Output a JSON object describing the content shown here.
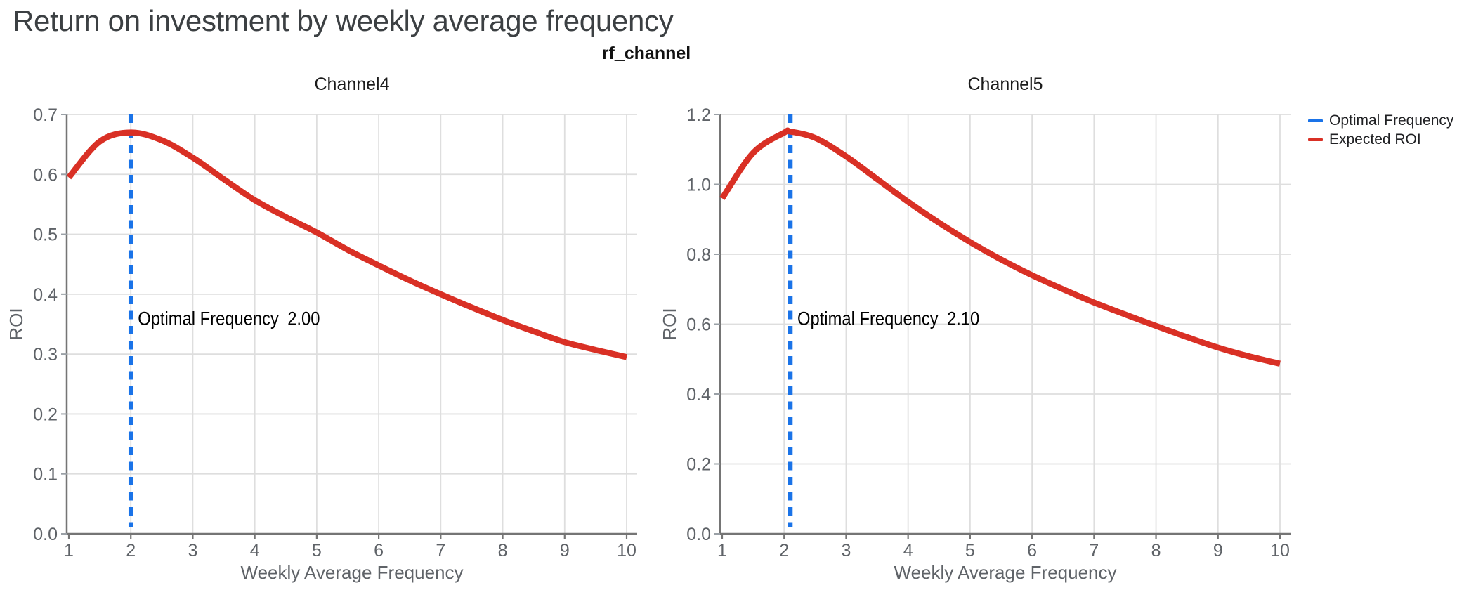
{
  "page_title": "Return on investment by weekly average frequency",
  "facet_title": "rf_channel",
  "legend": {
    "items": [
      {
        "label": "Optimal Frequency",
        "color": "#1a73e8",
        "dashed": true
      },
      {
        "label": "Expected ROI",
        "color": "#d93025",
        "dashed": false
      }
    ]
  },
  "colors": {
    "optimal_line": "#1a73e8",
    "roi_curve": "#d93025",
    "grid": "#dedede",
    "axis_domain": "#757575",
    "tick_label": "#5f6368",
    "axis_title": "#5f6368",
    "channel_title": "#1b1b1b",
    "annotation_text": "#000000"
  },
  "chart_data": [
    {
      "type": "line",
      "title": "Channel4",
      "xlabel": "Weekly Average Frequency",
      "ylabel": "ROI",
      "xlim": [
        1,
        10
      ],
      "ylim": [
        0,
        0.7
      ],
      "x_ticks": [
        "1",
        "2",
        "3",
        "4",
        "5",
        "6",
        "7",
        "8",
        "9",
        "10"
      ],
      "y_ticks": [
        "0.0",
        "0.1",
        "0.2",
        "0.3",
        "0.4",
        "0.5",
        "0.6",
        "0.7"
      ],
      "grid": true,
      "optimal_frequency": 2.0,
      "annotation_label": "Optimal Frequency",
      "annotation_value": "2.00",
      "series": [
        {
          "name": "Expected ROI",
          "x": [
            1,
            1.5,
            2,
            2.5,
            3,
            3.5,
            4,
            4.5,
            5,
            5.5,
            6,
            6.5,
            7,
            7.5,
            8,
            8.5,
            9,
            9.5,
            10
          ],
          "y": [
            0.595,
            0.655,
            0.67,
            0.657,
            0.628,
            0.592,
            0.557,
            0.529,
            0.503,
            0.474,
            0.448,
            0.423,
            0.4,
            0.378,
            0.357,
            0.338,
            0.32,
            0.307,
            0.295
          ]
        }
      ]
    },
    {
      "type": "line",
      "title": "Channel5",
      "xlabel": "Weekly Average Frequency",
      "ylabel": "ROI",
      "xlim": [
        1,
        10
      ],
      "ylim": [
        0,
        1.2
      ],
      "x_ticks": [
        "1",
        "2",
        "3",
        "4",
        "5",
        "6",
        "7",
        "8",
        "9",
        "10"
      ],
      "y_ticks": [
        "0.0",
        "0.2",
        "0.4",
        "0.6",
        "0.8",
        "1.0",
        "1.2"
      ],
      "grid": true,
      "optimal_frequency": 2.1,
      "annotation_label": "Optimal Frequency",
      "annotation_value": "2.10",
      "series": [
        {
          "name": "Expected ROI",
          "x": [
            1,
            1.5,
            2,
            2.1,
            2.5,
            3,
            3.5,
            4,
            4.5,
            5,
            5.5,
            6,
            6.5,
            7,
            7.5,
            8,
            8.5,
            9,
            9.5,
            10
          ],
          "y": [
            0.96,
            1.09,
            1.148,
            1.151,
            1.133,
            1.08,
            1.015,
            0.95,
            0.89,
            0.835,
            0.785,
            0.74,
            0.7,
            0.662,
            0.628,
            0.595,
            0.563,
            0.533,
            0.508,
            0.487
          ]
        }
      ]
    }
  ]
}
